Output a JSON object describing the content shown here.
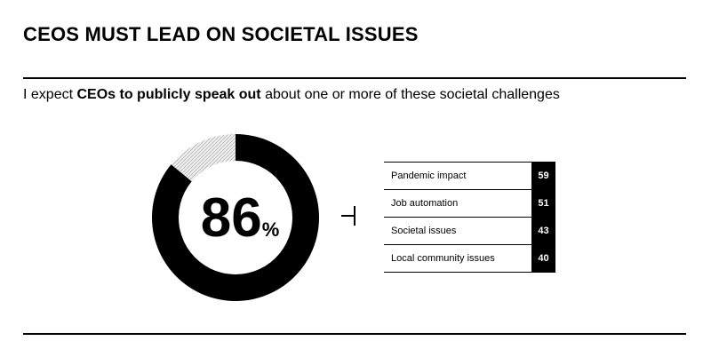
{
  "header": {
    "title": "CEOS MUST LEAD ON SOCIETAL ISSUES"
  },
  "subtitle": {
    "prefix": "I expect ",
    "emphasis": "CEOs to publicly speak out",
    "suffix": " about one or more of these societal challenges"
  },
  "stat": {
    "value": "86",
    "unit": "%"
  },
  "colors": {
    "ink": "#000000",
    "remainder_hatch": "#d9d9d9",
    "background": "#ffffff"
  },
  "chart_data": [
    {
      "type": "pie",
      "variant": "donut",
      "values": [
        86,
        14
      ],
      "center_label": "86%"
    },
    {
      "type": "bar",
      "categories": [
        "Pandemic impact",
        "Job automation",
        "Societal issues",
        "Local community  issues"
      ],
      "values": [
        59,
        51,
        43,
        40
      ]
    }
  ]
}
